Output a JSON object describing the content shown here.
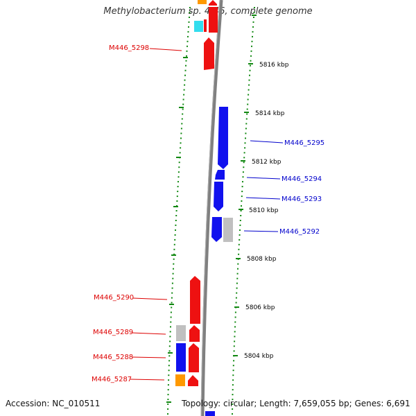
{
  "title": "Methylobacterium sp. 4-46, complete genome",
  "footer": {
    "accession": "Accession: NC_010511",
    "topology": "Topology: circular; Length: 7,659,055 bp; Genes: 6,691"
  },
  "colors": {
    "forward_gene": "#ee1111",
    "reverse_gene": "#1111ee",
    "other_gene": "#c0c0c0",
    "orange_gene": "#ff9900",
    "cyan_gene": "#33ddee",
    "backbone": "#808080",
    "tick": "#118811",
    "forward_label": "#dd0000",
    "reverse_label": "#0000cc"
  },
  "scale_labels": [
    "5816 kbp",
    "5814 kbp",
    "5812 kbp",
    "5810 kbp",
    "5808 kbp",
    "5806 kbp",
    "5804 kbp"
  ],
  "gene_labels": {
    "left": [
      "M446_5298",
      "M446_5290",
      "M446_5289",
      "M446_5288",
      "M446_5287"
    ],
    "right": [
      "M446_5295",
      "M446_5294",
      "M446_5293",
      "M446_5292"
    ]
  }
}
